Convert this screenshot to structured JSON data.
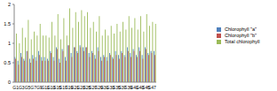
{
  "chart_data": {
    "type": "bar",
    "categories": [
      "G1",
      null,
      "G3",
      null,
      "G5",
      null,
      "G7",
      null,
      "G9",
      null,
      "G11",
      null,
      "G13",
      null,
      "G15",
      null,
      "G17",
      null,
      "G19",
      null,
      "G21",
      null,
      "G23",
      null,
      "G25",
      null,
      "G27",
      null,
      "G29",
      null,
      "G31",
      null,
      "G33",
      null,
      "G35",
      null,
      "G37",
      null,
      "G39",
      null,
      "G41",
      null,
      "G43",
      null,
      "G45",
      null,
      "G47",
      null
    ],
    "series": [
      {
        "name": "Chlorophyll \"a\"",
        "color": "#4f81bd",
        "values": [
          0.65,
          0.55,
          0.75,
          0.6,
          0.8,
          0.6,
          0.7,
          0.65,
          0.8,
          0.65,
          0.65,
          0.6,
          0.8,
          0.65,
          0.9,
          0.6,
          0.85,
          0.65,
          0.95,
          0.75,
          0.9,
          0.8,
          0.95,
          0.9,
          0.9,
          0.75,
          0.8,
          0.7,
          0.9,
          0.65,
          0.7,
          0.65,
          0.75,
          0.65,
          0.8,
          0.7,
          0.8,
          0.7,
          0.9,
          0.75,
          0.85,
          0.7,
          0.9,
          0.7,
          0.9,
          0.75,
          0.8,
          0.8
        ]
      },
      {
        "name": "Chlorophyll \"b\"",
        "color": "#c0504d",
        "values": [
          0.6,
          0.45,
          0.65,
          0.55,
          0.8,
          0.5,
          0.6,
          0.55,
          0.7,
          0.55,
          0.55,
          0.55,
          0.75,
          0.55,
          0.85,
          0.5,
          0.8,
          0.55,
          0.95,
          0.65,
          0.9,
          0.75,
          0.9,
          0.8,
          0.9,
          0.65,
          0.75,
          0.6,
          0.8,
          0.55,
          0.65,
          0.55,
          0.7,
          0.6,
          0.7,
          0.6,
          0.75,
          0.65,
          0.8,
          0.65,
          0.8,
          0.65,
          0.8,
          0.6,
          0.85,
          0.7,
          0.75,
          0.7
        ]
      },
      {
        "name": "Total chlorophyll",
        "color": "#9bbb59",
        "values": [
          1.25,
          1.0,
          1.4,
          1.15,
          1.6,
          1.1,
          1.3,
          1.2,
          1.5,
          1.2,
          1.2,
          1.15,
          1.55,
          1.2,
          1.75,
          1.1,
          1.65,
          1.2,
          1.9,
          1.4,
          1.8,
          1.55,
          1.85,
          1.7,
          1.8,
          1.4,
          1.55,
          1.3,
          1.7,
          1.2,
          1.35,
          1.2,
          1.45,
          1.25,
          1.5,
          1.3,
          1.55,
          1.35,
          1.7,
          1.4,
          1.65,
          1.35,
          1.7,
          1.3,
          1.75,
          1.45,
          1.55,
          1.5
        ]
      }
    ],
    "ylim": [
      0,
      2
    ],
    "yticks": [
      0,
      0.5,
      1,
      1.5,
      2
    ],
    "grid": false,
    "legend": "right"
  }
}
